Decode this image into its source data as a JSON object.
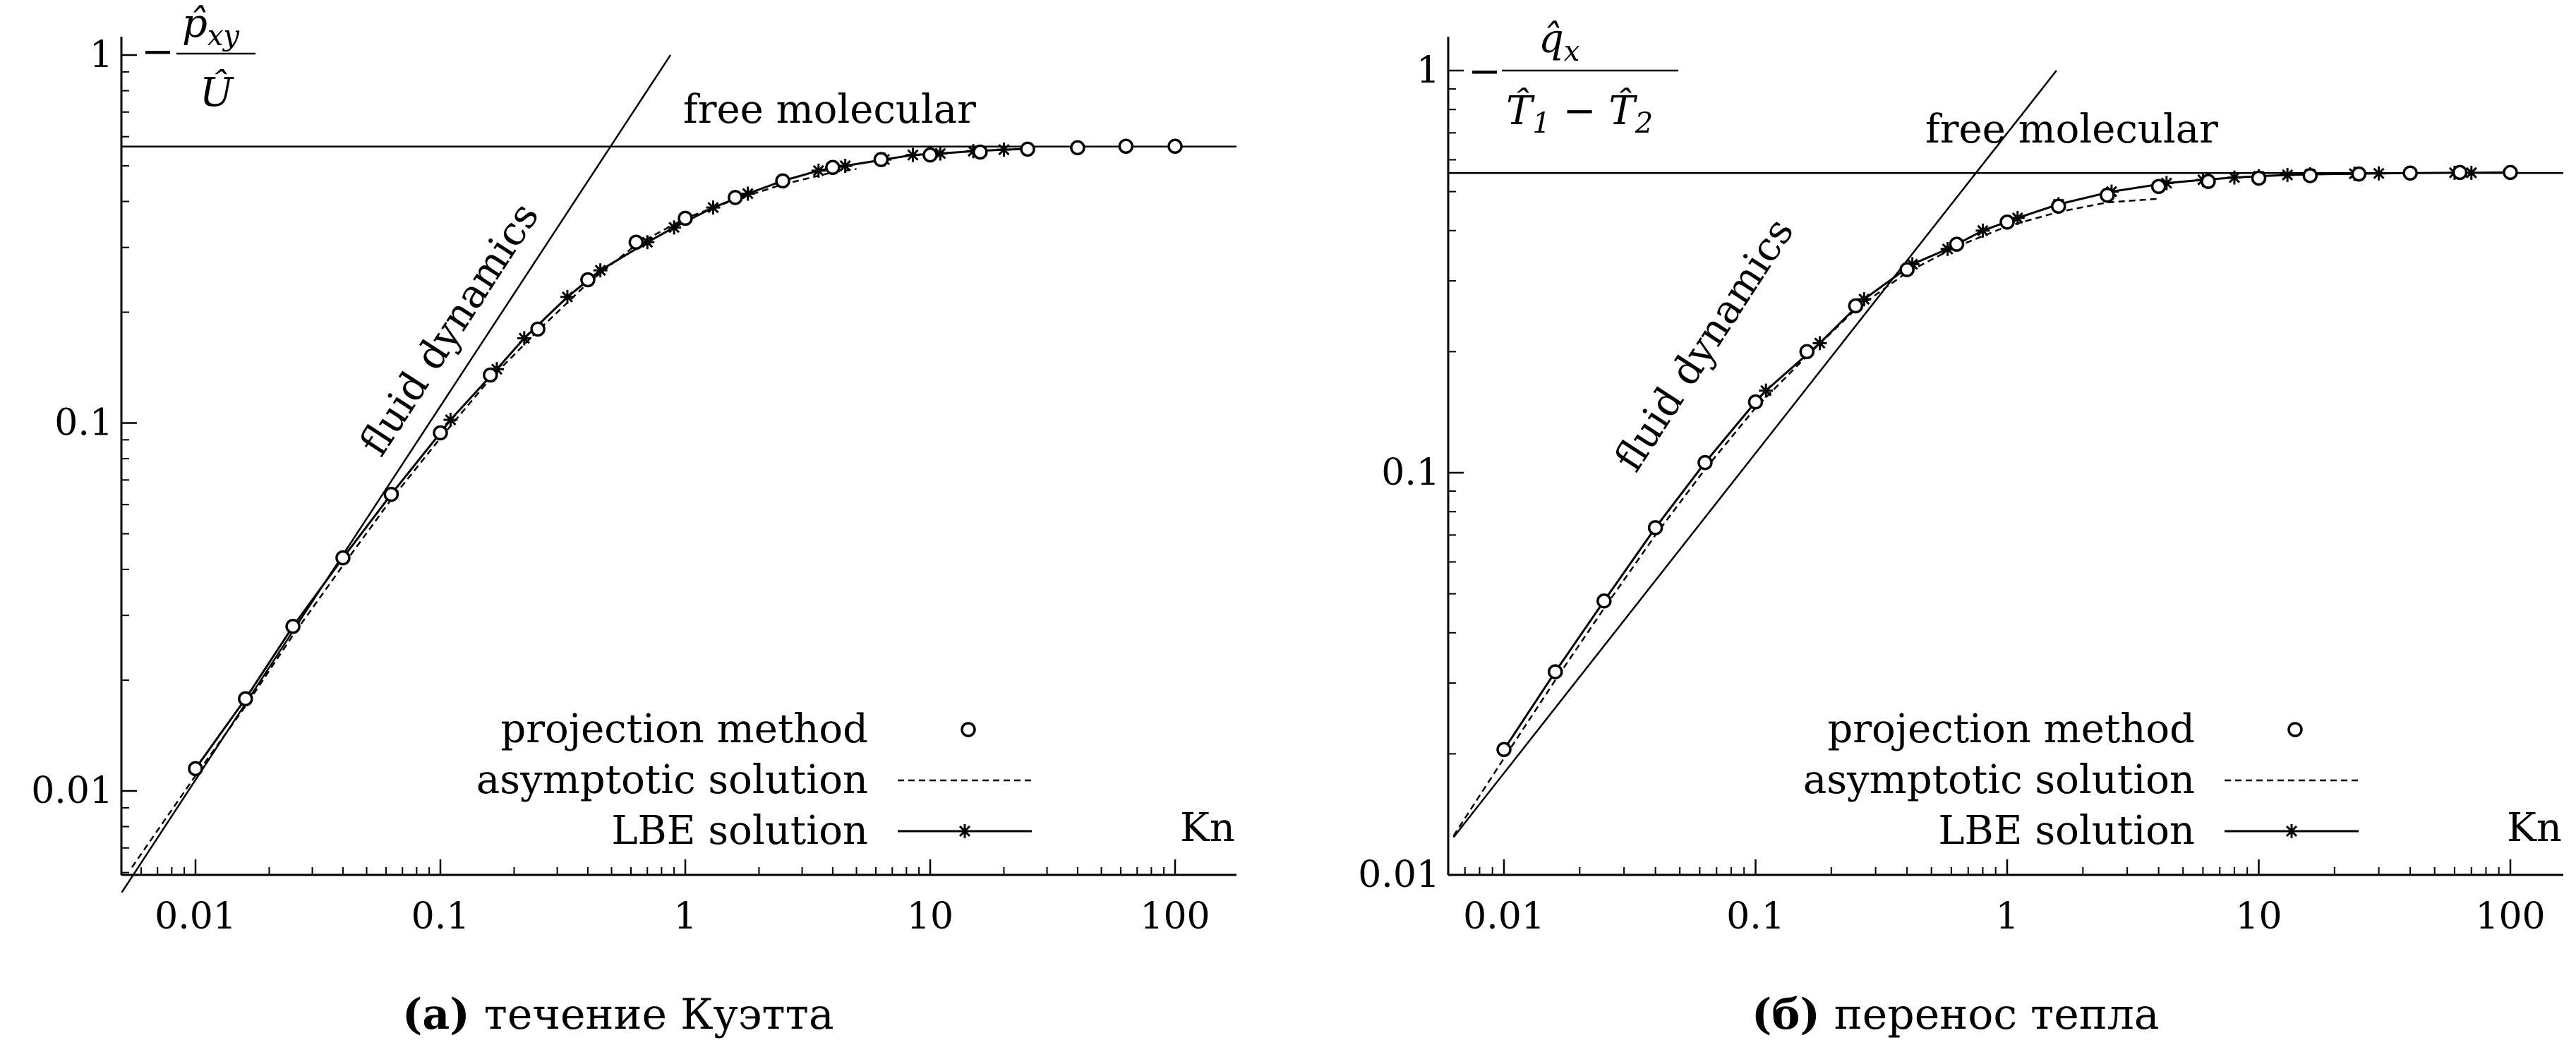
{
  "charts": [
    {
      "ylabel": {
        "prefix": "−",
        "num": "p̂",
        "num_sub": "xy",
        "den": "Û"
      },
      "free_molecular_label": "free molecular",
      "fluid_dynamics_label": "fluid dynamics",
      "kn_label": "Kn",
      "legend": [
        {
          "label": "projection method",
          "style": "circle"
        },
        {
          "label": "asymptotic solution",
          "style": "dashed"
        },
        {
          "label": "LBE solution",
          "style": "line-star"
        }
      ],
      "caption_tag": "(a)",
      "caption_text": "течение Куэтта",
      "xticks": [
        "0.01",
        "0.1",
        "1",
        "10",
        "100"
      ],
      "yticks": [
        "0.01",
        "0.1",
        "1"
      ]
    },
    {
      "ylabel": {
        "prefix": "−",
        "num": "q̂",
        "num_sub": "x",
        "den_a": "T̂",
        "den_a_sub": "1",
        "den_mid": " − ",
        "den_b": "T̂",
        "den_b_sub": "2"
      },
      "free_molecular_label": "free molecular",
      "fluid_dynamics_label": "fluid dynamics",
      "kn_label": "Kn",
      "legend": [
        {
          "label": "projection method",
          "style": "circle"
        },
        {
          "label": "asymptotic solution",
          "style": "dashed"
        },
        {
          "label": "LBE solution",
          "style": "line-star"
        }
      ],
      "caption_tag": "(б)",
      "caption_text": "перенос тепла",
      "xticks": [
        "0.01",
        "0.1",
        "1",
        "10",
        "100"
      ],
      "yticks": [
        "0.01",
        "0.1",
        "1"
      ]
    }
  ],
  "chart_data": [
    {
      "type": "line",
      "xscale": "log",
      "yscale": "log",
      "xlim": [
        0.005,
        170
      ],
      "ylim": [
        0.006,
        1.1
      ],
      "series": [
        {
          "name": "projection method",
          "x": [
            0.01,
            0.016,
            0.025,
            0.04,
            0.063,
            0.1,
            0.16,
            0.25,
            0.4,
            0.63,
            1,
            1.6,
            2.5,
            4,
            6.3,
            10,
            16,
            25,
            40,
            63,
            100
          ],
          "y": [
            0.0115,
            0.0178,
            0.028,
            0.043,
            0.064,
            0.094,
            0.135,
            0.18,
            0.245,
            0.31,
            0.36,
            0.41,
            0.455,
            0.495,
            0.52,
            0.535,
            0.545,
            0.555,
            0.56,
            0.565,
            0.565
          ]
        },
        {
          "name": "asymptotic solution",
          "x": [
            0.0055,
            0.01,
            0.016,
            0.025,
            0.04,
            0.063,
            0.1,
            0.16,
            0.25,
            0.4,
            0.63,
            1,
            1.6,
            2.5,
            4,
            5
          ],
          "y": [
            0.0062,
            0.011,
            0.017,
            0.0265,
            0.041,
            0.062,
            0.091,
            0.132,
            0.178,
            0.24,
            0.305,
            0.36,
            0.405,
            0.445,
            0.48,
            0.49
          ]
        },
        {
          "name": "LBE solution",
          "x": [
            0.11,
            0.17,
            0.22,
            0.33,
            0.45,
            0.7,
            0.9,
            1.3,
            1.8,
            2.5,
            3.5,
            4.5,
            6.5,
            8.5,
            11,
            15,
            20,
            25
          ],
          "y": [
            0.102,
            0.14,
            0.17,
            0.22,
            0.26,
            0.31,
            0.34,
            0.385,
            0.42,
            0.455,
            0.485,
            0.5,
            0.52,
            0.535,
            0.54,
            0.548,
            0.553,
            0.556
          ]
        }
      ],
      "fluid_dynamics_line": {
        "x": [
          0.005,
          0.87
        ],
        "y": [
          0.0053,
          1.0
        ]
      },
      "free_molecular_line": {
        "y": 0.564
      }
    },
    {
      "type": "line",
      "xscale": "log",
      "yscale": "log",
      "xlim": [
        0.0063,
        170
      ],
      "ylim": [
        0.01,
        1.1
      ],
      "series": [
        {
          "name": "projection method",
          "x": [
            0.01,
            0.016,
            0.025,
            0.04,
            0.063,
            0.1,
            0.16,
            0.25,
            0.4,
            0.63,
            1,
            1.6,
            2.5,
            4,
            6.3,
            10,
            16,
            25,
            40,
            63,
            100
          ],
          "y": [
            0.0205,
            0.032,
            0.048,
            0.073,
            0.106,
            0.15,
            0.2,
            0.26,
            0.32,
            0.37,
            0.42,
            0.46,
            0.49,
            0.515,
            0.53,
            0.54,
            0.548,
            0.553,
            0.556,
            0.558,
            0.558
          ]
        },
        {
          "name": "asymptotic solution",
          "x": [
            0.0063,
            0.01,
            0.016,
            0.025,
            0.04,
            0.063,
            0.1,
            0.16,
            0.25,
            0.4,
            0.63,
            1,
            1.6,
            2.5,
            4
          ],
          "y": [
            0.0125,
            0.0195,
            0.0305,
            0.046,
            0.07,
            0.102,
            0.145,
            0.195,
            0.255,
            0.315,
            0.365,
            0.41,
            0.445,
            0.47,
            0.48
          ]
        },
        {
          "name": "LBE solution",
          "x": [
            0.11,
            0.18,
            0.27,
            0.42,
            0.58,
            0.8,
            1.1,
            1.6,
            2.6,
            4.3,
            6,
            8,
            10,
            13,
            16,
            24,
            30,
            40,
            60,
            70,
            100
          ],
          "y": [
            0.16,
            0.21,
            0.27,
            0.33,
            0.36,
            0.4,
            0.43,
            0.465,
            0.5,
            0.525,
            0.535,
            0.542,
            0.546,
            0.55,
            0.552,
            0.554,
            0.555,
            0.556,
            0.557,
            0.557,
            0.558
          ]
        }
      ],
      "fluid_dynamics_line": {
        "x": [
          0.0063,
          1.57
        ],
        "y": [
          0.0124,
          1.0
        ]
      },
      "free_molecular_line": {
        "y": 0.556
      }
    }
  ]
}
